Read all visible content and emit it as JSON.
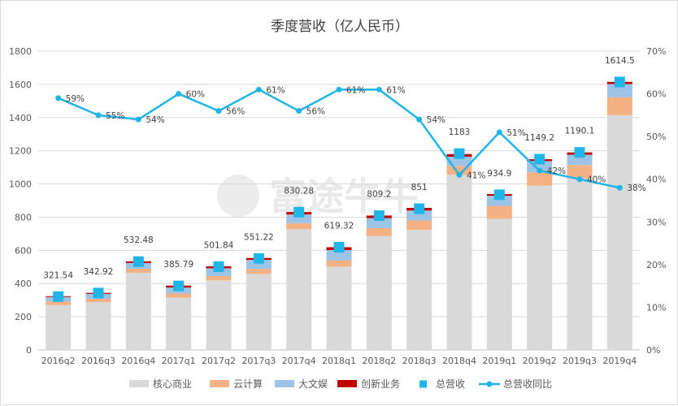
{
  "chart_data": {
    "type": "bar",
    "title": "季度营收（亿人民币）",
    "categories": [
      "2016q2",
      "2016q3",
      "2016q4",
      "2017q1",
      "2017q2",
      "2017q3",
      "2017q4",
      "2018q1",
      "2018q2",
      "2018q3",
      "2018q4",
      "2019q1",
      "2019q2",
      "2019q3",
      "2019q4"
    ],
    "series": [
      {
        "name": "核心商业",
        "color": "#d9d9d9",
        "values": [
          270,
          288,
          465,
          315,
          420,
          458,
          728,
          502,
          687,
          723,
          1055,
          790,
          990,
          1034,
          1415
        ]
      },
      {
        "name": "云计算",
        "color": "#f4b183",
        "values": [
          22,
          20,
          24,
          25,
          25,
          30,
          36,
          38,
          47,
          57,
          54,
          78,
          80,
          80,
          107
        ]
      },
      {
        "name": "大文娱",
        "color": "#9dc3e6",
        "values": [
          27,
          30,
          35,
          36,
          47,
          55,
          52,
          62,
          60,
          60,
          55,
          61,
          68,
          62,
          80
        ]
      },
      {
        "name": "创新业务",
        "color": "#c00000",
        "values": [
          5,
          6,
          10,
          12,
          12,
          11,
          15,
          17,
          16,
          16,
          16,
          10,
          11,
          14,
          13
        ]
      }
    ],
    "total": {
      "name": "总营收",
      "color": "#1fb5e9",
      "values": [
        321.54,
        342.92,
        532.48,
        385.79,
        501.84,
        551.22,
        830.28,
        619.32,
        809.2,
        851,
        1183,
        934.9,
        1149.2,
        1190.1,
        1614.5
      ],
      "labels": [
        "321.54",
        "342.92",
        "532.48",
        "385.79",
        "501.84",
        "551.22",
        "830.28",
        "619.32",
        "809.2",
        "851",
        "1183",
        "934.9",
        "1149.2",
        "1190.1",
        "1614.5"
      ]
    },
    "yoy": {
      "name": "总营收同比",
      "color": "#1fb5e9",
      "values": [
        59,
        55,
        54,
        60,
        56,
        61,
        56,
        61,
        61,
        54,
        41,
        51,
        42,
        40,
        38
      ],
      "labels": [
        "59%",
        "55%",
        "54%",
        "60%",
        "56%",
        "61%",
        "56%",
        "61%",
        "61%",
        "54%",
        "41%",
        "51%",
        "42%",
        "40%",
        "38%"
      ]
    },
    "yaxis_left": {
      "min": 0,
      "max": 1800,
      "ticks": [
        "0",
        "200",
        "400",
        "600",
        "800",
        "1000",
        "1200",
        "1400",
        "1600",
        "1800"
      ]
    },
    "yaxis_right": {
      "min": 0,
      "max": 70,
      "ticks": [
        "0%",
        "10%",
        "20%",
        "30%",
        "40%",
        "50%",
        "60%",
        "70%"
      ]
    },
    "grid": true,
    "legend": "bottom",
    "watermark": "富途牛牛"
  }
}
